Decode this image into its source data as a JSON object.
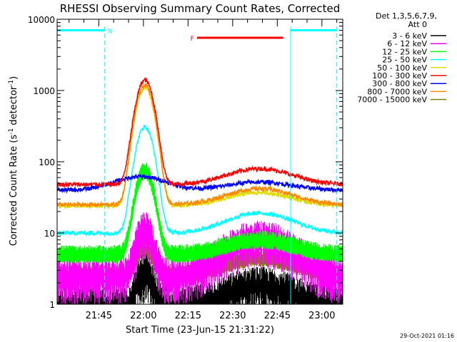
{
  "chart_data": {
    "type": "line",
    "title": "RHESSI Observing Summary Count Rates, Corrected",
    "xlabel": "Start Time (23-Jun-15 21:31:22)",
    "ylabel": "Corrected Count Rate (s⁻¹ detector⁻¹)",
    "ylabel_parts": [
      "Corrected Count Rate (s",
      "-1",
      " detector",
      "-1",
      ")"
    ],
    "yscale": "log",
    "ylim": [
      1,
      10000
    ],
    "xlim_minutes": [
      0,
      96
    ],
    "y_ticks": [
      {
        "value": 1,
        "label": "1"
      },
      {
        "value": 10,
        "label": "10"
      },
      {
        "value": 100,
        "label": "100"
      },
      {
        "value": 1000,
        "label": "1000"
      },
      {
        "value": 10000,
        "label": "10000"
      }
    ],
    "x_ticks": [
      {
        "minute": 14,
        "label": "21:45"
      },
      {
        "minute": 29,
        "label": "22:00"
      },
      {
        "minute": 44,
        "label": "22:15"
      },
      {
        "minute": 59,
        "label": "22:30"
      },
      {
        "minute": 74,
        "label": "22:45"
      },
      {
        "minute": 89,
        "label": "23:00"
      }
    ],
    "legend_header": [
      "Det 1,3,5,6,7,9,",
      "Att 0"
    ],
    "legend_position": "right",
    "series": [
      {
        "name": "3 - 6 keV",
        "color": "#000000",
        "base": 1.0,
        "flare": 3,
        "flare2": 2,
        "mode": "noisy"
      },
      {
        "name": "6 - 12 keV",
        "color": "#ff00ff",
        "base": 2.6,
        "flare": 12,
        "flare2": 9,
        "mode": "noisy"
      },
      {
        "name": "12 - 25 keV",
        "color": "#00ff00",
        "base": 5.0,
        "flare": 75,
        "flare2": 8,
        "mode": "band"
      },
      {
        "name": "25 - 50 keV",
        "color": "#00ffff",
        "base": 10,
        "flare": 310,
        "flare2": 19,
        "mode": "line"
      },
      {
        "name": "50 - 100 keV",
        "color": "#dddd00",
        "base": 24,
        "flare": 1080,
        "flare2": 37,
        "mode": "line"
      },
      {
        "name": "100 - 300 keV",
        "color": "#ff0000",
        "base": 48,
        "flare": 1400,
        "flare2": 80,
        "mode": "line"
      },
      {
        "name": "300 - 800 keV",
        "color": "#0000ff",
        "base": 30,
        "flare": 62,
        "flare2": 52,
        "mode": "line"
      },
      {
        "name": "800 - 7000 keV",
        "color": "#ff8800",
        "base": 25,
        "flare": 1180,
        "flare2": 42,
        "mode": "line"
      },
      {
        "name": "7000 - 15000 keV",
        "color": "#808000",
        "base": 2.6,
        "flare": 6,
        "flare2": 4.5,
        "mode": "band"
      }
    ],
    "flags": [
      {
        "label": "N",
        "color": "#00ffff",
        "start_minute": 0,
        "end_minute": 16,
        "y_value": 7000
      },
      {
        "label": "",
        "color": "#00ffff",
        "start_minute": 78.5,
        "end_minute": 94,
        "y_value": 7000
      },
      {
        "label": "F",
        "color": "#ff0000",
        "start_minute": 47,
        "end_minute": 76,
        "y_value": 5500
      }
    ],
    "vertical_lines": [
      {
        "minute": 16,
        "color": "#00ffff",
        "style": "dashed"
      },
      {
        "minute": 78.5,
        "color": "#00ffff",
        "style": "solid"
      },
      {
        "minute": 94,
        "color": "#00ffff",
        "style": "dashed"
      }
    ],
    "timestamp": "29-Oct-2021 01:16"
  }
}
